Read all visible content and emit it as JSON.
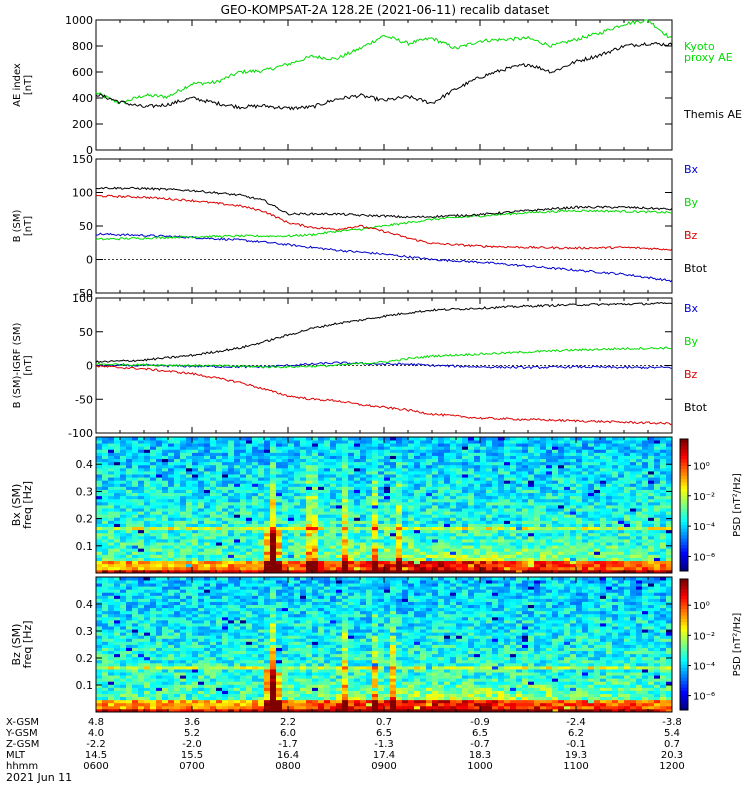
{
  "title": "GEO-KOMPSAT-2A 128.2E (2021-06-11) recalib dataset",
  "date_label": "2021 Jun 11",
  "colors": {
    "black": "#000000",
    "green": "#00dd00",
    "red": "#dd0000",
    "blue": "#0000cc"
  },
  "chart_data": [
    {
      "type": "line",
      "panel": "AE",
      "ylabel_lines": [
        "AE index",
        "[nT]"
      ],
      "ylim": [
        0,
        1000
      ],
      "yticks": [
        "0",
        "200",
        "400",
        "600",
        "800",
        "1000"
      ],
      "xlim": [
        "0600",
        "1200"
      ],
      "x": [
        "0600",
        "0615",
        "0630",
        "0645",
        "0700",
        "0715",
        "0730",
        "0745",
        "0800",
        "0815",
        "0830",
        "0845",
        "0900",
        "0915",
        "0930",
        "0945",
        "1000",
        "1015",
        "1030",
        "1045",
        "1100",
        "1115",
        "1130",
        "1145",
        "1200"
      ],
      "series": [
        {
          "name": "Kyoto proxy AE",
          "label_lines": [
            "Kyoto",
            "proxy AE"
          ],
          "color": "#00dd00",
          "values": [
            440,
            360,
            420,
            410,
            510,
            520,
            600,
            610,
            660,
            720,
            700,
            780,
            880,
            820,
            860,
            780,
            840,
            850,
            860,
            800,
            850,
            900,
            970,
            1000,
            850
          ]
        },
        {
          "name": "Themis AE",
          "label_lines": [
            "Themis AE"
          ],
          "color": "#000000",
          "values": [
            430,
            370,
            330,
            350,
            400,
            360,
            330,
            340,
            320,
            330,
            390,
            420,
            380,
            410,
            360,
            470,
            560,
            620,
            660,
            600,
            680,
            730,
            800,
            820,
            810
          ]
        }
      ]
    },
    {
      "type": "line",
      "panel": "B_SM",
      "ylabel_lines": [
        "B (SM)",
        "[nT]"
      ],
      "ylim": [
        -50,
        150
      ],
      "yticks": [
        "-50",
        "0",
        "50",
        "100",
        "150"
      ],
      "xlim": [
        "0600",
        "1200"
      ],
      "x": [
        "0600",
        "0630",
        "0700",
        "0730",
        "0745",
        "0800",
        "0815",
        "0830",
        "0845",
        "0900",
        "0915",
        "0930",
        "1000",
        "1030",
        "1100",
        "1130",
        "1200"
      ],
      "series": [
        {
          "name": "Bx",
          "color": "#0000cc",
          "values": [
            38,
            36,
            33,
            29,
            26,
            22,
            18,
            14,
            11,
            8,
            4,
            0,
            -4,
            -10,
            -16,
            -22,
            -32
          ]
        },
        {
          "name": "By",
          "color": "#00dd00",
          "values": [
            30,
            32,
            34,
            35,
            35,
            35,
            37,
            42,
            45,
            50,
            55,
            60,
            65,
            70,
            73,
            72,
            70
          ]
        },
        {
          "name": "Bz",
          "color": "#dd0000",
          "values": [
            95,
            93,
            88,
            80,
            72,
            55,
            48,
            45,
            50,
            42,
            32,
            24,
            20,
            18,
            17,
            18,
            15
          ]
        },
        {
          "name": "Btot",
          "color": "#000000",
          "values": [
            107,
            106,
            103,
            96,
            88,
            68,
            68,
            68,
            66,
            65,
            63,
            64,
            67,
            73,
            78,
            78,
            75
          ]
        }
      ]
    },
    {
      "type": "line",
      "panel": "dB",
      "ylabel_lines": [
        "B (SM)-IGRF (SM)",
        "[nT]"
      ],
      "ylim": [
        -100,
        100
      ],
      "yticks": [
        "-100",
        "-50",
        "0",
        "50",
        "100"
      ],
      "xlim": [
        "0600",
        "1200"
      ],
      "x": [
        "0600",
        "0630",
        "0700",
        "0730",
        "0745",
        "0800",
        "0815",
        "0830",
        "0845",
        "0900",
        "0915",
        "0930",
        "1000",
        "1030",
        "1100",
        "1130",
        "1200"
      ],
      "series": [
        {
          "name": "Bx",
          "color": "#0000cc",
          "values": [
            0,
            0,
            -1,
            -2,
            -2,
            0,
            2,
            4,
            3,
            2,
            2,
            0,
            -2,
            -3,
            -2,
            -3,
            -3
          ]
        },
        {
          "name": "By",
          "color": "#00dd00",
          "values": [
            2,
            1,
            0,
            -1,
            -2,
            -2,
            -1,
            0,
            3,
            5,
            10,
            14,
            17,
            20,
            23,
            25,
            26
          ]
        },
        {
          "name": "Bz",
          "color": "#dd0000",
          "values": [
            -1,
            -5,
            -12,
            -25,
            -35,
            -45,
            -50,
            -52,
            -58,
            -62,
            -66,
            -72,
            -78,
            -80,
            -82,
            -84,
            -86
          ]
        },
        {
          "name": "Btot",
          "color": "#000000",
          "values": [
            5,
            8,
            15,
            26,
            35,
            45,
            55,
            62,
            67,
            73,
            78,
            82,
            85,
            88,
            90,
            91,
            92
          ]
        }
      ]
    },
    {
      "type": "heatmap",
      "panel": "Bx_spectrogram",
      "ylabel_lines": [
        "Bx (SM)",
        "freq [Hz]"
      ],
      "ylim": [
        0,
        0.5
      ],
      "yticks": [
        "0.1",
        "0.2",
        "0.3",
        "0.4"
      ],
      "colorbar": {
        "label": "PSD [nT²/Hz]",
        "ticks": [
          "10⁰",
          "10⁻²",
          "10⁻⁴",
          "10⁻⁶"
        ]
      },
      "event_times": [
        "0750",
        "0815",
        "0835",
        "0855",
        "0910"
      ]
    },
    {
      "type": "heatmap",
      "panel": "Bz_spectrogram",
      "ylabel_lines": [
        "Bz (SM)",
        "freq [Hz]"
      ],
      "ylim": [
        0,
        0.5
      ],
      "yticks": [
        "0.1",
        "0.2",
        "0.3",
        "0.4"
      ],
      "colorbar": {
        "label": "PSD [nT²/Hz]",
        "ticks": [
          "10⁰",
          "10⁻²",
          "10⁻⁴",
          "10⁻⁶"
        ]
      },
      "event_times": [
        "0750",
        "0835",
        "0855",
        "0905"
      ]
    }
  ],
  "ephemeris": {
    "labels": [
      "X-GSM",
      "Y-GSM",
      "Z-GSM",
      "MLT",
      "hhmm"
    ],
    "columns": [
      [
        "4.8",
        "4.0",
        "-2.2",
        "14.5",
        "0600"
      ],
      [
        "3.6",
        "5.2",
        "-2.0",
        "15.5",
        "0700"
      ],
      [
        "2.2",
        "6.0",
        "-1.7",
        "16.4",
        "0800"
      ],
      [
        "0.7",
        "6.5",
        "-1.3",
        "17.4",
        "0900"
      ],
      [
        "-0.9",
        "6.5",
        "-0.7",
        "18.3",
        "1000"
      ],
      [
        "-2.4",
        "6.2",
        "-0.1",
        "19.3",
        "1100"
      ],
      [
        "-3.8",
        "5.4",
        "0.7",
        "20.3",
        "1200"
      ]
    ]
  }
}
